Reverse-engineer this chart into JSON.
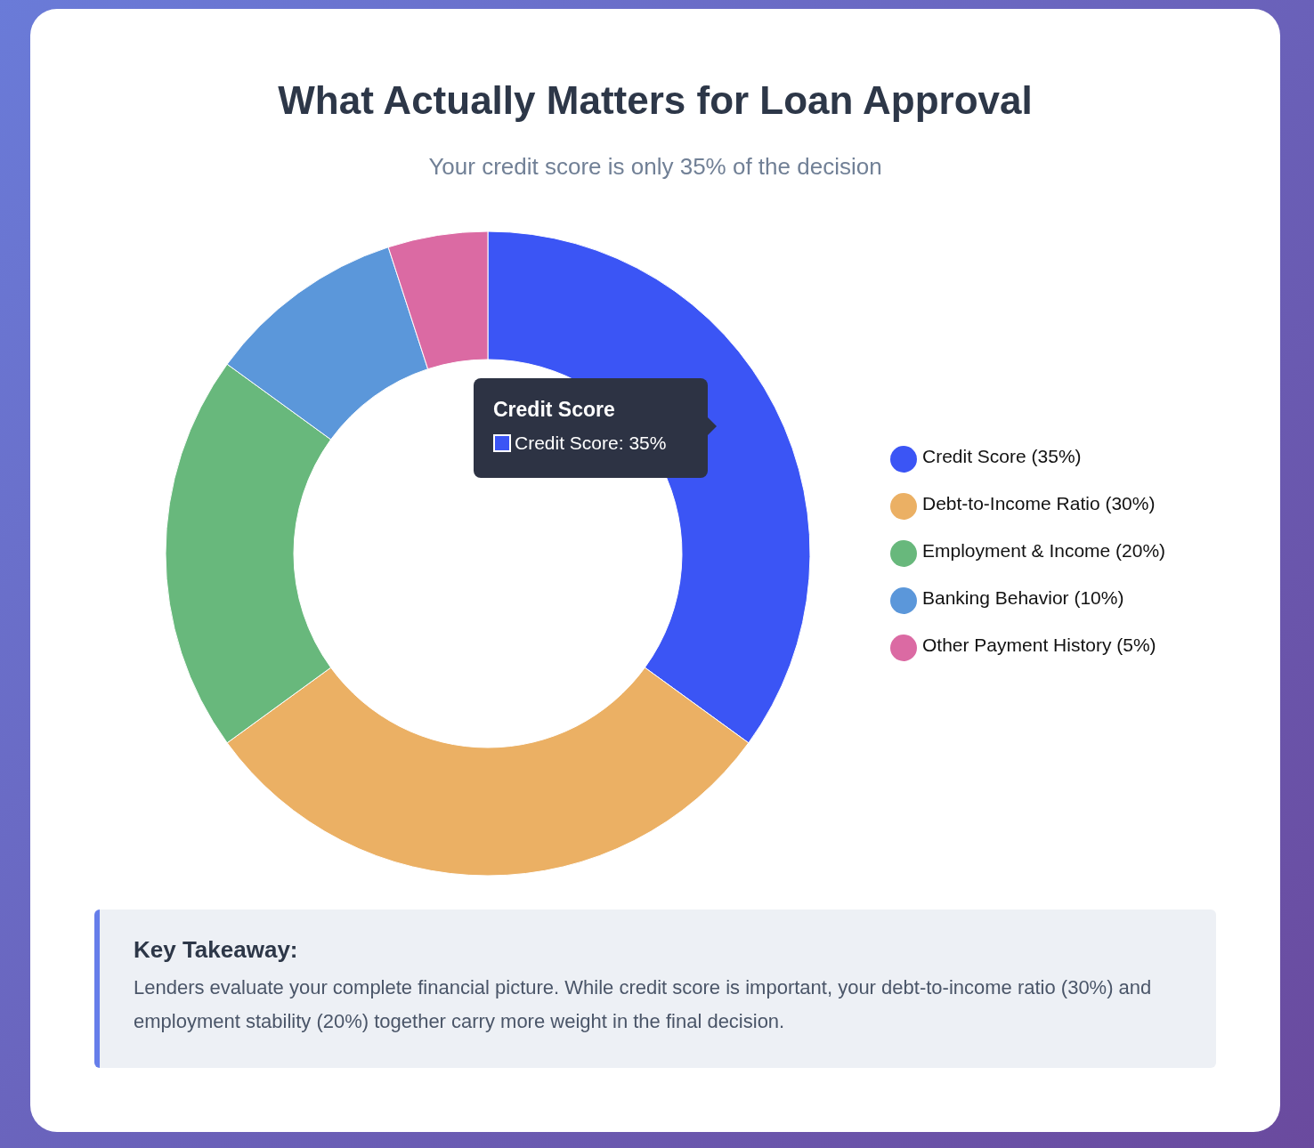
{
  "chart_data": {
    "type": "donut",
    "title": "What Actually Matters for Loan Approval",
    "subtitle": "Your credit score is only 35% of the decision",
    "categories": [
      "Credit Score (35%)",
      "Debt-to-Income Ratio (30%)",
      "Employment & Income (20%)",
      "Banking Behavior (10%)",
      "Other Payment History (5%)"
    ],
    "values": [
      35,
      30,
      20,
      10,
      5
    ],
    "colors": [
      "#3b55f5",
      "#ebb064",
      "#68b87c",
      "#5b97da",
      "#db6aa3"
    ],
    "legend": "right",
    "annotations": [
      "Credit Score",
      "Credit Score: 35%",
      "Key Takeaway:",
      "Lenders evaluate your complete financial picture. While credit score is important, your debt-to-income ratio (30%) and employment stability (20%) together carry more weight in the final decision."
    ]
  }
}
